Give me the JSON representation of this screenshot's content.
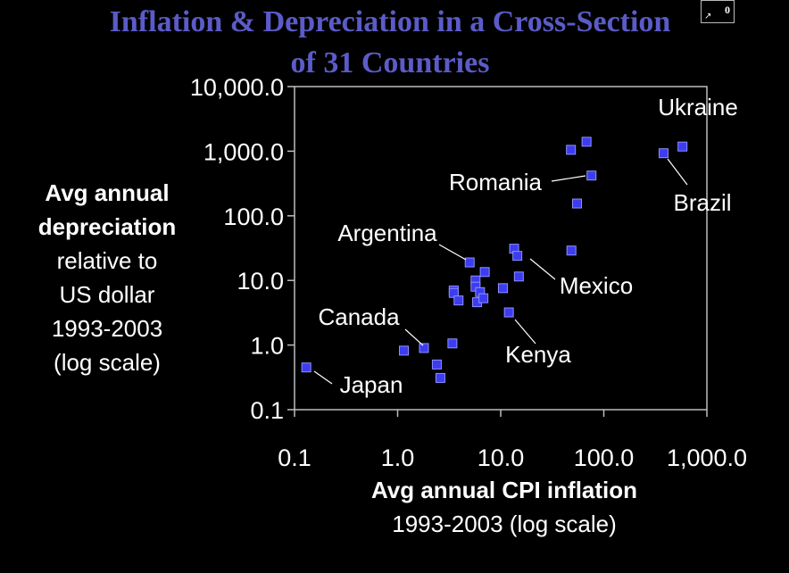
{
  "title_line1": "Inflation & Depreciation in a Cross-Section",
  "title_line2": "of 31 Countries",
  "slide_number": "0",
  "y_axis_label": [
    "Avg annual",
    "depreciation",
    "relative to",
    "US dollar",
    "1993-2003",
    "(log scale)"
  ],
  "x_axis_label": [
    "Avg annual CPI inflation",
    "1993-2003 (log scale)"
  ],
  "colors": {
    "background": "#000000",
    "title": "#5b5bc8",
    "marker": "#3c3cf0",
    "text": "#ffffff"
  },
  "chart_data": {
    "type": "scatter",
    "xscale": "log",
    "yscale": "log",
    "xlim": [
      0.1,
      1000
    ],
    "ylim": [
      0.1,
      10000
    ],
    "x_ticks": [
      0.1,
      1,
      10,
      100,
      1000
    ],
    "x_tick_labels": [
      "0.1",
      "1.0",
      "10.0",
      "100.0",
      "1,000.0"
    ],
    "y_ticks": [
      0.1,
      1,
      10,
      100,
      1000,
      10000
    ],
    "y_tick_labels": [
      "0.1",
      "1.0",
      "10.0",
      "100.0",
      "1,000.0",
      "10,000.0"
    ],
    "grid": false,
    "points": [
      {
        "x": 0.13,
        "y": 0.45
      },
      {
        "x": 1.15,
        "y": 0.82
      },
      {
        "x": 1.8,
        "y": 0.9
      },
      {
        "x": 2.4,
        "y": 0.5
      },
      {
        "x": 2.6,
        "y": 0.31
      },
      {
        "x": 3.4,
        "y": 1.06
      },
      {
        "x": 3.5,
        "y": 7.0
      },
      {
        "x": 3.5,
        "y": 6.4
      },
      {
        "x": 3.9,
        "y": 4.9
      },
      {
        "x": 5.0,
        "y": 19.0
      },
      {
        "x": 5.7,
        "y": 10.0
      },
      {
        "x": 5.7,
        "y": 8.0
      },
      {
        "x": 5.9,
        "y": 4.6
      },
      {
        "x": 6.3,
        "y": 6.6
      },
      {
        "x": 6.8,
        "y": 5.3
      },
      {
        "x": 7.0,
        "y": 13.5
      },
      {
        "x": 10.5,
        "y": 7.6
      },
      {
        "x": 12.0,
        "y": 3.2
      },
      {
        "x": 13.5,
        "y": 31.0
      },
      {
        "x": 14.5,
        "y": 24.0
      },
      {
        "x": 15.0,
        "y": 11.5
      },
      {
        "x": 48.0,
        "y": 1050.0
      },
      {
        "x": 48.5,
        "y": 29.0
      },
      {
        "x": 55.0,
        "y": 155.0
      },
      {
        "x": 68.0,
        "y": 1400.0
      },
      {
        "x": 76.0,
        "y": 420.0
      },
      {
        "x": 380.0,
        "y": 930.0
      },
      {
        "x": 580.0,
        "y": 1180.0
      }
    ],
    "annotations": [
      {
        "text": "Ukraine",
        "point": {
          "x": 580.0,
          "y": 1180.0
        }
      },
      {
        "text": "Brazil",
        "point": {
          "x": 380.0,
          "y": 930.0
        }
      },
      {
        "text": "Romania",
        "point": {
          "x": 76.0,
          "y": 420.0
        }
      },
      {
        "text": "Argentina",
        "point": {
          "x": 5.0,
          "y": 19.0
        }
      },
      {
        "text": "Mexico",
        "point": {
          "x": 14.5,
          "y": 24.0
        }
      },
      {
        "text": "Canada",
        "point": {
          "x": 1.8,
          "y": 0.9
        }
      },
      {
        "text": "Kenya",
        "point": {
          "x": 12.0,
          "y": 3.2
        }
      },
      {
        "text": "Japan",
        "point": {
          "x": 0.13,
          "y": 0.45
        }
      }
    ]
  }
}
